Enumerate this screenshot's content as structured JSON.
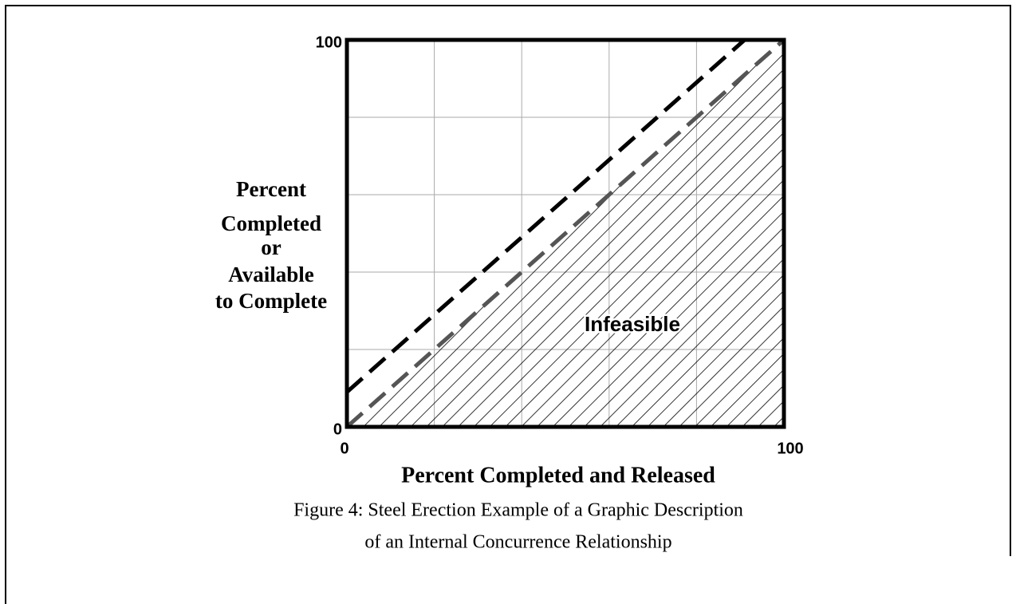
{
  "chart_data": {
    "type": "line",
    "y_label": [
      "Percent",
      "Completed",
      "or",
      "Available",
      "to  Complete"
    ],
    "x_label": "Percent Completed and Released",
    "caption": [
      "Figure 4:  Steel Erection Example of a Graphic Description",
      "of an Internal  Concurrence Relationship"
    ],
    "annotation": "Infeasible",
    "xlim": [
      0,
      100
    ],
    "ylim": [
      0,
      100
    ],
    "xticks": [
      0,
      100
    ],
    "yticks": [
      0,
      100
    ],
    "xgrid": [
      20,
      40,
      60,
      80
    ],
    "ygrid": [
      20,
      40,
      60,
      80
    ],
    "grid": true,
    "series": [
      {
        "x": [
          0,
          100
        ],
        "values": [
          0,
          100
        ],
        "color": "#555555",
        "dashed": true,
        "fill": "hatch"
      },
      {
        "x": [
          0,
          91
        ],
        "values": [
          9,
          100
        ],
        "color": "#000000",
        "dashed": true
      }
    ]
  }
}
